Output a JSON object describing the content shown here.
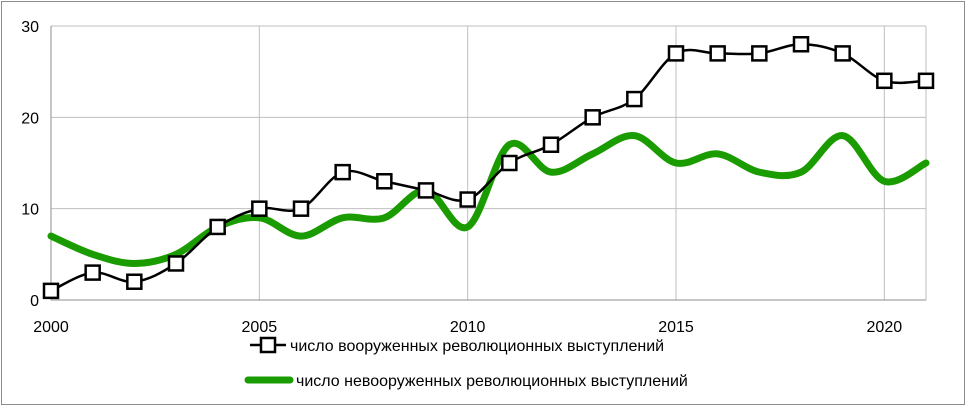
{
  "chart_data": {
    "type": "line",
    "x": [
      2000,
      2001,
      2002,
      2003,
      2004,
      2005,
      2006,
      2007,
      2008,
      2009,
      2010,
      2011,
      2012,
      2013,
      2014,
      2015,
      2016,
      2017,
      2018,
      2019,
      2020,
      2021
    ],
    "series": [
      {
        "name": "число вооруженных революционных выступлений",
        "values": [
          1,
          3,
          2,
          4,
          8,
          10,
          10,
          14,
          13,
          12,
          11,
          15,
          17,
          20,
          22,
          27,
          27,
          27,
          28,
          27,
          24,
          24
        ],
        "color": "#000000",
        "marker": "square"
      },
      {
        "name": "число невооруженных революционных выступлений",
        "values": [
          7,
          5,
          4,
          5,
          8,
          9,
          7,
          9,
          9,
          12,
          8,
          17,
          14,
          16,
          18,
          15,
          16,
          14,
          14,
          18,
          13,
          15
        ],
        "color": "#1a9c00",
        "marker": "none"
      }
    ],
    "xlim": [
      2000,
      2021
    ],
    "ylim": [
      0,
      30
    ],
    "xticks": [
      "2000",
      "2005",
      "2010",
      "2015",
      "2020"
    ],
    "yticks": [
      "0",
      "10",
      "20",
      "30"
    ],
    "grid": true,
    "legend_position": "bottom"
  }
}
